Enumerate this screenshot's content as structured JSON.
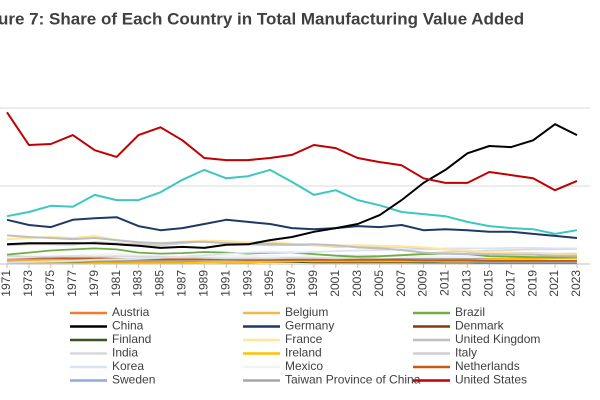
{
  "chart_data": {
    "type": "line",
    "title": "ure 7: Share of Each Country in Total Manufacturing Value Added",
    "x": [
      1971,
      1973,
      1975,
      1977,
      1979,
      1981,
      1983,
      1985,
      1987,
      1989,
      1991,
      1993,
      1995,
      1997,
      1999,
      2001,
      2003,
      2005,
      2007,
      2009,
      2011,
      2013,
      2015,
      2017,
      2019,
      2021,
      2023
    ],
    "xlim": [
      1970.36,
      2024.19
    ],
    "xticks": [
      1971,
      1973,
      1975,
      1977,
      1979,
      1981,
      1983,
      1985,
      1987,
      1989,
      1991,
      1993,
      1995,
      1997,
      1999,
      2001,
      2003,
      2005,
      2007,
      2009,
      2011,
      2013,
      2015,
      2017,
      2019,
      2021,
      2023
    ],
    "ylim": [
      0,
      50.8
    ],
    "yticks": [
      0,
      15,
      30
    ],
    "grid": true,
    "series": [
      {
        "name": "Austria",
        "color": "#ed7d31",
        "values": [
          0.5,
          0.5,
          0.6,
          0.6,
          0.6,
          0.6,
          0.5,
          0.5,
          0.6,
          0.6,
          0.6,
          0.6,
          0.6,
          0.6,
          0.5,
          0.5,
          0.5,
          0.5,
          0.5,
          0.5,
          0.5,
          0.5,
          0.4,
          0.4,
          0.4,
          0.4,
          0.4
        ]
      },
      {
        "name": "Belgium",
        "color": "#f4b942",
        "values": [
          0.8,
          0.8,
          0.8,
          0.8,
          0.8,
          0.7,
          0.6,
          0.6,
          0.6,
          0.7,
          0.6,
          0.6,
          0.6,
          0.6,
          0.5,
          0.5,
          0.5,
          0.5,
          0.5,
          0.5,
          0.4,
          0.4,
          0.4,
          0.4,
          0.4,
          0.4,
          0.4
        ]
      },
      {
        "name": "Brazil",
        "color": "#70ad47",
        "values": [
          1.8,
          2.2,
          2.6,
          2.8,
          3.0,
          2.8,
          2.2,
          2.0,
          2.1,
          2.3,
          2.2,
          2.0,
          2.2,
          2.2,
          1.9,
          1.6,
          1.4,
          1.5,
          1.7,
          1.9,
          2.0,
          1.9,
          1.5,
          1.4,
          1.3,
          1.3,
          1.4
        ]
      },
      {
        "name": "China",
        "color": "#000000",
        "values": [
          3.8,
          4.0,
          4.0,
          4.0,
          4.0,
          3.8,
          3.5,
          3.1,
          3.3,
          3.1,
          3.7,
          3.8,
          4.6,
          5.2,
          6.2,
          6.9,
          7.7,
          9.4,
          12.3,
          15.6,
          18.1,
          21.3,
          22.7,
          22.5,
          23.8,
          26.9,
          24.8
        ]
      },
      {
        "name": "Germany",
        "color": "#203864",
        "values": [
          8.5,
          7.5,
          7.1,
          8.5,
          8.8,
          9.0,
          7.3,
          6.5,
          6.9,
          7.7,
          8.5,
          8.1,
          7.7,
          6.9,
          6.7,
          6.9,
          7.3,
          7.1,
          7.5,
          6.5,
          6.7,
          6.5,
          6.2,
          6.2,
          5.8,
          5.4,
          5.0
        ]
      },
      {
        "name": "Denmark",
        "color": "#843c0c",
        "values": [
          0.4,
          0.4,
          0.4,
          0.4,
          0.4,
          0.4,
          0.4,
          0.4,
          0.4,
          0.4,
          0.4,
          0.4,
          0.4,
          0.4,
          0.3,
          0.3,
          0.3,
          0.3,
          0.3,
          0.3,
          0.3,
          0.3,
          0.3,
          0.3,
          0.3,
          0.3,
          0.3
        ]
      },
      {
        "name": "Finland",
        "color": "#375623",
        "values": [
          0.4,
          0.4,
          0.4,
          0.4,
          0.4,
          0.4,
          0.4,
          0.4,
          0.4,
          0.4,
          0.3,
          0.3,
          0.4,
          0.4,
          0.4,
          0.4,
          0.4,
          0.4,
          0.4,
          0.3,
          0.3,
          0.3,
          0.2,
          0.2,
          0.2,
          0.2,
          0.2
        ]
      },
      {
        "name": "France",
        "color": "#ffe699",
        "values": [
          4.8,
          5.0,
          5.2,
          5.0,
          5.4,
          4.6,
          4.2,
          4.0,
          4.3,
          4.5,
          4.4,
          4.2,
          4.3,
          3.9,
          3.6,
          3.5,
          3.6,
          3.5,
          3.4,
          3.2,
          2.8,
          2.6,
          2.2,
          2.1,
          2.0,
          1.9,
          1.8
        ]
      },
      {
        "name": "United Kingdom",
        "color": "#bfbfbf",
        "values": [
          5.5,
          5.2,
          5.0,
          4.8,
          5.0,
          4.6,
          4.2,
          4.0,
          4.2,
          4.3,
          4.0,
          3.8,
          3.9,
          3.7,
          3.8,
          3.6,
          3.2,
          3.0,
          2.7,
          2.2,
          2.0,
          1.9,
          1.9,
          1.8,
          1.8,
          1.6,
          1.6
        ]
      },
      {
        "name": "India",
        "color": "#d9d9d9",
        "values": [
          1.6,
          1.4,
          1.4,
          1.5,
          1.4,
          1.5,
          1.4,
          1.4,
          1.3,
          1.2,
          1.1,
          1.1,
          1.1,
          1.2,
          1.2,
          1.1,
          1.2,
          1.4,
          1.7,
          2.0,
          2.3,
          2.4,
          2.6,
          2.7,
          2.8,
          2.8,
          2.9
        ]
      },
      {
        "name": "Ireland",
        "color": "#ffc000",
        "values": [
          0.1,
          0.1,
          0.1,
          0.1,
          0.2,
          0.2,
          0.2,
          0.2,
          0.2,
          0.3,
          0.3,
          0.3,
          0.4,
          0.5,
          0.6,
          0.7,
          0.7,
          0.6,
          0.6,
          0.6,
          0.6,
          0.6,
          0.9,
          1.0,
          1.1,
          1.2,
          1.2
        ]
      },
      {
        "name": "Italy",
        "color": "#d0cece",
        "values": [
          3.6,
          3.8,
          3.8,
          3.7,
          4.2,
          4.0,
          3.8,
          3.6,
          4.0,
          4.4,
          4.2,
          3.8,
          3.6,
          3.7,
          3.6,
          3.3,
          3.4,
          3.3,
          3.3,
          3.0,
          2.8,
          2.3,
          2.2,
          2.2,
          2.1,
          2.0,
          2.0
        ]
      },
      {
        "name": "Korea",
        "color": "#dae3f3",
        "values": [
          0.3,
          0.4,
          0.5,
          0.6,
          0.8,
          0.9,
          1.0,
          1.2,
          1.4,
          1.7,
          2.0,
          2.2,
          2.3,
          2.2,
          2.3,
          2.5,
          2.6,
          2.7,
          2.8,
          2.8,
          3.0,
          3.0,
          3.0,
          3.1,
          3.1,
          3.0,
          3.0
        ]
      },
      {
        "name": "Mexico",
        "color": "#f2f2f2",
        "values": [
          1.2,
          1.3,
          1.5,
          1.6,
          1.8,
          2.0,
          1.6,
          1.5,
          1.4,
          1.5,
          1.6,
          1.5,
          1.6,
          1.3,
          1.6,
          1.8,
          1.7,
          1.6,
          1.5,
          1.4,
          1.4,
          1.5,
          1.4,
          1.4,
          1.4,
          1.4,
          1.4
        ]
      },
      {
        "name": "Netherlands",
        "color": "#c55a11",
        "values": [
          1.2,
          1.2,
          1.2,
          1.1,
          1.1,
          1.0,
          0.9,
          0.9,
          0.9,
          0.9,
          0.9,
          0.8,
          0.8,
          0.8,
          0.8,
          0.8,
          0.8,
          0.8,
          0.8,
          0.7,
          0.7,
          0.7,
          0.6,
          0.6,
          0.6,
          0.6,
          0.6
        ]
      },
      {
        "name": "Sweden",
        "color": "#8faadc",
        "values": [
          1.0,
          1.0,
          1.0,
          1.0,
          1.0,
          0.9,
          0.8,
          0.7,
          0.8,
          0.8,
          0.8,
          0.7,
          0.7,
          0.7,
          0.6,
          0.6,
          0.6,
          0.6,
          0.6,
          0.5,
          0.5,
          0.5,
          0.4,
          0.4,
          0.4,
          0.4,
          0.4
        ]
      },
      {
        "name": "Taiwan Province of China",
        "color": "#a6a6a6",
        "values": [
          0.3,
          0.4,
          0.4,
          0.5,
          0.6,
          0.6,
          0.6,
          0.7,
          0.8,
          0.9,
          1.0,
          1.0,
          1.0,
          1.0,
          1.0,
          0.9,
          0.9,
          0.9,
          1.0,
          1.0,
          1.0,
          1.0,
          1.0,
          1.0,
          1.0,
          1.1,
          1.1
        ]
      },
      {
        "name": "United States",
        "color": "#c00000",
        "values": [
          29.2,
          22.9,
          23.1,
          24.8,
          21.9,
          20.6,
          24.8,
          26.3,
          23.8,
          20.4,
          20.0,
          20.0,
          20.4,
          21.0,
          22.9,
          22.3,
          20.4,
          19.6,
          19.0,
          16.5,
          15.6,
          15.6,
          17.7,
          17.1,
          16.5,
          14.2,
          16.0
        ]
      },
      {
        "color": "#3cc8c0",
        "values": [
          9.2,
          10.0,
          11.2,
          11.0,
          13.3,
          12.3,
          12.3,
          13.8,
          16.2,
          18.1,
          16.5,
          16.9,
          18.1,
          15.8,
          13.3,
          14.2,
          12.3,
          11.3,
          10.0,
          9.6,
          9.2,
          8.1,
          7.3,
          6.9,
          6.7,
          5.8,
          6.5
        ]
      }
    ]
  }
}
